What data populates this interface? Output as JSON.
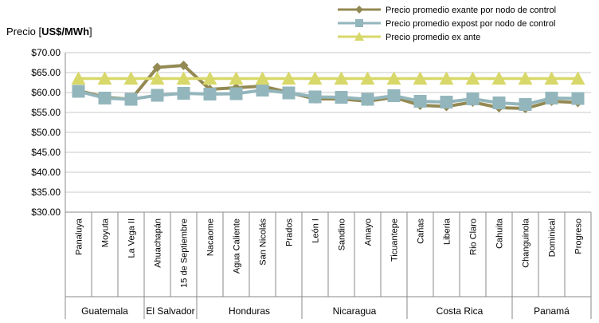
{
  "chart_data": {
    "type": "line",
    "ylabel_prefix": "Precio [",
    "ylabel_unit": "US$/MWh",
    "ylabel_suffix": "]",
    "ylim": [
      30,
      70
    ],
    "ytick_step": 5,
    "ytick_labels": [
      "$70.00",
      "$65.00",
      "$60.00",
      "$55.00",
      "$50.00",
      "$45.00",
      "$40.00",
      "$35.00",
      "$30.00"
    ],
    "grid": true,
    "legend_position": "top-right",
    "categories": [
      "Panaluya",
      "Moyuta",
      "La Vega II",
      "Ahuachapán",
      "15 de Septiembre",
      "Nacaome",
      "Agua Caliente",
      "San Nicolás",
      "Prados",
      "León I",
      "Sandino",
      "Amayo",
      "Ticuantepe",
      "Cañas",
      "Liberia",
      "Rio Claro",
      "Cahuita",
      "Changuinola",
      "Dominical",
      "Progreso"
    ],
    "groups": [
      {
        "label": "Guatemala",
        "count": 3
      },
      {
        "label": "El Salvador",
        "count": 2
      },
      {
        "label": "Honduras",
        "count": 4
      },
      {
        "label": "Nicaragua",
        "count": 4
      },
      {
        "label": "Costa Rica",
        "count": 4
      },
      {
        "label": "Panamá",
        "count": 3
      }
    ],
    "series": [
      {
        "name": "Precio promedio exante por nodo de control",
        "color": "#938953",
        "marker": "diamond",
        "values": [
          60.5,
          58.8,
          58.3,
          66.3,
          66.8,
          60.8,
          61.2,
          61.6,
          60.0,
          58.4,
          58.4,
          57.8,
          58.8,
          56.8,
          56.5,
          57.6,
          56.2,
          56.0,
          57.8,
          57.5
        ]
      },
      {
        "name": "Precio promedio expost por nodo de control",
        "color": "#93B6BC",
        "marker": "square",
        "values": [
          60.3,
          58.6,
          58.3,
          59.3,
          59.8,
          59.6,
          59.7,
          60.6,
          59.9,
          58.9,
          58.8,
          58.3,
          59.2,
          57.8,
          57.6,
          58.4,
          57.4,
          57.0,
          58.6,
          58.5
        ]
      },
      {
        "name": "Precio promedio ex ante",
        "color": "#D8D86A",
        "marker": "triangle",
        "values": [
          63.5,
          63.5,
          63.5,
          63.5,
          63.5,
          63.5,
          63.5,
          63.5,
          63.5,
          63.5,
          63.5,
          63.5,
          63.5,
          63.5,
          63.5,
          63.5,
          63.5,
          63.5,
          63.5,
          63.5
        ]
      }
    ]
  }
}
